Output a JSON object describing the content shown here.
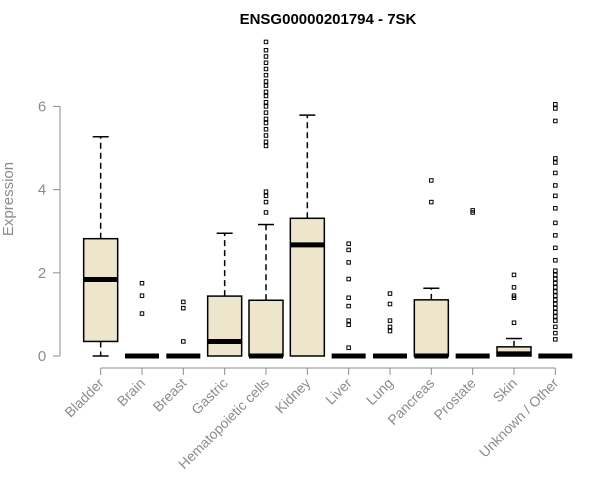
{
  "chart_data": {
    "type": "box",
    "title": "ENSG00000201794 - 7SK",
    "xlabel": "",
    "ylabel": "Expression",
    "ylim": [
      0,
      7.6
    ],
    "yticks": [
      0,
      2,
      4,
      6
    ],
    "grid": false,
    "box_fill": "#ede5cc",
    "box_stroke": "#000000",
    "axis_color": "#8c8c8c",
    "categories": [
      "Bladder",
      "Brain",
      "Breast",
      "Gastric",
      "Hematopoietic cells",
      "Kidney",
      "Liver",
      "Lung",
      "Pancreas",
      "Prostate",
      "Skin",
      "Unknown / Other"
    ],
    "boxes": [
      {
        "label": "Bladder",
        "min": 0.0,
        "q1": 0.35,
        "median": 1.84,
        "q3": 2.82,
        "max": 5.27,
        "outliers": []
      },
      {
        "label": "Brain",
        "min": 0.0,
        "q1": 0.0,
        "median": 0.0,
        "q3": 0.0,
        "max": 0.0,
        "outliers": [
          1.02,
          1.45,
          1.75
        ]
      },
      {
        "label": "Breast",
        "min": 0.0,
        "q1": 0.0,
        "median": 0.0,
        "q3": 0.0,
        "max": 0.0,
        "outliers": [
          0.35,
          1.15,
          1.3
        ]
      },
      {
        "label": "Gastric",
        "min": 0.0,
        "q1": 0.0,
        "median": 0.35,
        "q3": 1.44,
        "max": 2.95,
        "outliers": []
      },
      {
        "label": "Hematopoietic cells",
        "min": 0.0,
        "q1": 0.0,
        "median": 0.0,
        "q3": 1.34,
        "max": 3.16,
        "outliers": [
          3.45,
          3.7,
          3.85,
          3.95,
          5.05,
          5.15,
          5.3,
          5.45,
          5.6,
          5.7,
          5.85,
          6.0,
          6.1,
          6.25,
          6.35,
          6.5,
          6.6,
          6.75,
          6.9,
          7.05,
          7.2,
          7.35,
          7.55
        ]
      },
      {
        "label": "Kidney",
        "min": 0.0,
        "q1": 0.0,
        "median": 2.67,
        "q3": 3.31,
        "max": 5.79,
        "outliers": []
      },
      {
        "label": "Liver",
        "min": 0.0,
        "q1": 0.0,
        "median": 0.0,
        "q3": 0.0,
        "max": 0.0,
        "outliers": [
          0.2,
          0.75,
          0.85,
          1.2,
          1.4,
          1.85,
          2.25,
          2.55,
          2.7
        ]
      },
      {
        "label": "Lung",
        "min": 0.0,
        "q1": 0.0,
        "median": 0.0,
        "q3": 0.0,
        "max": 0.0,
        "outliers": [
          0.6,
          0.7,
          0.85,
          1.25,
          1.5
        ]
      },
      {
        "label": "Pancreas",
        "min": 0.0,
        "q1": 0.0,
        "median": 0.0,
        "q3": 1.35,
        "max": 1.63,
        "outliers": [
          3.7,
          4.22
        ]
      },
      {
        "label": "Prostate",
        "min": 0.0,
        "q1": 0.0,
        "median": 0.0,
        "q3": 0.0,
        "max": 0.0,
        "outliers": [
          3.45,
          3.5
        ]
      },
      {
        "label": "Skin",
        "min": 0.0,
        "q1": 0.0,
        "median": 0.05,
        "q3": 0.22,
        "max": 0.42,
        "outliers": [
          0.8,
          1.4,
          1.45,
          1.65,
          1.95
        ]
      },
      {
        "label": "Unknown / Other",
        "min": 0.0,
        "q1": 0.0,
        "median": 0.0,
        "q3": 0.0,
        "max": 0.0,
        "outliers": [
          0.4,
          0.55,
          0.7,
          0.85,
          0.95,
          1.05,
          1.15,
          1.25,
          1.35,
          1.45,
          1.55,
          1.65,
          1.75,
          1.85,
          1.95,
          2.05,
          2.3,
          2.6,
          2.9,
          3.2,
          3.55,
          3.85,
          4.1,
          4.4,
          4.65,
          4.75,
          5.65,
          5.95,
          6.05
        ]
      }
    ]
  }
}
